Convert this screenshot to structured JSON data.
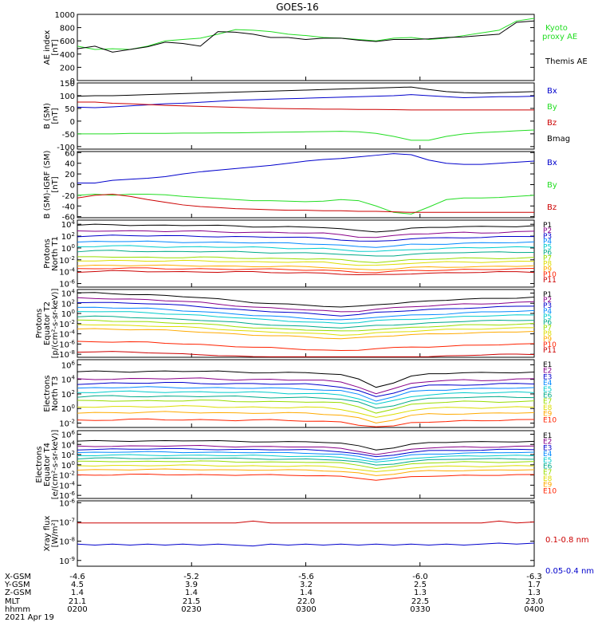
{
  "title": "GOES-16",
  "date_label": "2021 Apr 19",
  "footer": {
    "rows": [
      {
        "label": "X-GSM",
        "values": [
          "-4.6",
          "-5.2",
          "-5.6",
          "-6.0",
          "-6.3"
        ]
      },
      {
        "label": "Y-GSM",
        "values": [
          "4.5",
          "3.9",
          "3.2",
          "2.5",
          "1.7"
        ]
      },
      {
        "label": "Z-GSM",
        "values": [
          "1.4",
          "1.4",
          "1.4",
          "1.3",
          "1.3"
        ]
      },
      {
        "label": "MLT",
        "values": [
          "21.1",
          "21.5",
          "22.0",
          "22.5",
          "23.0"
        ]
      },
      {
        "label": "hhmm",
        "values": [
          "0200",
          "0230",
          "0300",
          "0330",
          "0400"
        ]
      }
    ]
  },
  "colors": {
    "black": "#000000",
    "green": "#22dd22",
    "blue": "#0000cc",
    "red": "#cc0000",
    "p_colors": [
      "#000000",
      "#880088",
      "#0000cc",
      "#0088ff",
      "#00cccc",
      "#00aa88",
      "#99dd00",
      "#dddd00",
      "#ffaa00",
      "#ff2200",
      "#cc0000"
    ]
  },
  "chart_data": [
    {
      "id": "ae",
      "type": "line",
      "ylabel": [
        "AE index",
        "[nT]"
      ],
      "ylim": [
        0,
        1000
      ],
      "ticks": [
        0,
        200,
        400,
        600,
        800,
        1000
      ],
      "tick_labels": [
        "0",
        "200",
        "400",
        "600",
        "800",
        "1000"
      ],
      "legend": [
        "Kyoto proxy AE",
        "Themis AE"
      ],
      "series": [
        {
          "name": "Kyoto proxy AE",
          "values": [
            520,
            470,
            480,
            470,
            520,
            600,
            620,
            640,
            700,
            770,
            760,
            740,
            700,
            680,
            650,
            640,
            620,
            600,
            640,
            650,
            620,
            640,
            680,
            720,
            760,
            900,
            940
          ]
        },
        {
          "name": "Themis AE",
          "values": [
            480,
            520,
            430,
            470,
            510,
            580,
            560,
            520,
            740,
            730,
            700,
            650,
            650,
            620,
            640,
            640,
            610,
            590,
            620,
            620,
            630,
            650,
            660,
            680,
            700,
            880,
            900
          ]
        }
      ]
    },
    {
      "id": "bsm",
      "type": "line",
      "ylabel": [
        "B (SM)",
        "[nT]"
      ],
      "ylim": [
        -110,
        150
      ],
      "ticks": [
        -100,
        -50,
        0,
        50,
        100,
        150
      ],
      "tick_labels": [
        "-100",
        "-50",
        "0",
        "50",
        "100",
        "150"
      ],
      "legend": [
        "Bx",
        "By",
        "Bz",
        "Bmag"
      ],
      "series": [
        {
          "name": "Bx",
          "values": [
            55,
            53,
            56,
            60,
            64,
            68,
            70,
            74,
            78,
            82,
            84,
            86,
            88,
            90,
            92,
            94,
            96,
            98,
            100,
            104,
            100,
            96,
            92,
            94,
            96,
            96,
            98
          ]
        },
        {
          "name": "By",
          "values": [
            -50,
            -50,
            -50,
            -48,
            -48,
            -48,
            -47,
            -47,
            -46,
            -46,
            -45,
            -44,
            -43,
            -42,
            -41,
            -40,
            -42,
            -48,
            -60,
            -75,
            -75,
            -60,
            -50,
            -45,
            -42,
            -38,
            -35
          ]
        },
        {
          "name": "Bz",
          "values": [
            75,
            75,
            70,
            68,
            65,
            62,
            60,
            58,
            56,
            54,
            52,
            50,
            49,
            48,
            47,
            47,
            46,
            46,
            45,
            44,
            44,
            44,
            44,
            44,
            44,
            44,
            44
          ]
        },
        {
          "name": "Bmag",
          "values": [
            98,
            100,
            100,
            102,
            104,
            106,
            108,
            110,
            112,
            114,
            116,
            118,
            120,
            122,
            124,
            126,
            128,
            130,
            132,
            134,
            124,
            116,
            112,
            110,
            112,
            114,
            116
          ]
        }
      ]
    },
    {
      "id": "bigrf",
      "type": "line",
      "ylabel": [
        "B (SM)-IGRF (SM)",
        "[nT]"
      ],
      "ylim": [
        -62,
        62
      ],
      "ticks": [
        -60,
        -40,
        -20,
        0,
        20,
        40,
        60
      ],
      "tick_labels": [
        "-60",
        "-40",
        "-20",
        "0",
        "20",
        "40",
        "60"
      ],
      "legend": [
        "Bx",
        "By",
        "Bz"
      ],
      "series": [
        {
          "name": "Bx",
          "values": [
            3,
            3,
            8,
            10,
            12,
            15,
            20,
            24,
            27,
            30,
            33,
            36,
            40,
            44,
            47,
            49,
            52,
            55,
            58,
            56,
            46,
            40,
            38,
            38,
            40,
            42,
            44
          ]
        },
        {
          "name": "By",
          "values": [
            -20,
            -18,
            -20,
            -18,
            -18,
            -19,
            -22,
            -24,
            -26,
            -28,
            -30,
            -30,
            -31,
            -32,
            -31,
            -28,
            -30,
            -40,
            -52,
            -55,
            -42,
            -28,
            -25,
            -25,
            -24,
            -22,
            -20
          ]
        },
        {
          "name": "Bz",
          "values": [
            -25,
            -20,
            -18,
            -22,
            -28,
            -33,
            -38,
            -41,
            -43,
            -45,
            -46,
            -47,
            -48,
            -48,
            -49,
            -49,
            -50,
            -50,
            -51,
            -52,
            -52,
            -52,
            -52,
            -52,
            -52,
            -52,
            -52
          ]
        }
      ]
    },
    {
      "id": "pnt1",
      "type": "line",
      "log": true,
      "ylabel": [
        "Protons",
        "North T1"
      ],
      "ylim_log": [
        -6.6,
        4.7
      ],
      "ticks": [
        4,
        2,
        0,
        -2,
        -4,
        -6
      ],
      "tick_labels": [
        "10^4",
        "10^2",
        "10^0",
        "10^-2",
        "10^-4",
        "10^-6"
      ],
      "legend": [
        "P1",
        "P2",
        "P3",
        "P4",
        "P5",
        "P6",
        "P7",
        "P8",
        "P9",
        "P10",
        "P11"
      ],
      "base_logs": [
        3.8,
        2.8,
        2.0,
        1.0,
        0.2,
        -0.6,
        -1.6,
        -2.2,
        -3.0,
        -3.5,
        -4.0
      ],
      "profile": [
        0,
        0.1,
        0.15,
        0.1,
        0.05,
        0,
        0,
        0,
        -0.05,
        -0.1,
        -0.15,
        -0.2,
        -0.25,
        -0.3,
        -0.35,
        -0.6,
        -0.9,
        -1.0,
        -0.8,
        -0.5,
        -0.4,
        -0.3,
        -0.2,
        -0.2,
        -0.15,
        -0.1,
        -0.05
      ]
    },
    {
      "id": "pet2",
      "type": "line",
      "log": true,
      "ylabel": [
        "Protons",
        "Equator T2",
        "[p/(cm²-s-sr-keV)]"
      ],
      "ylim_log": [
        -8.6,
        4.7
      ],
      "ticks": [
        4,
        2,
        0,
        -2,
        -4,
        -6,
        -8
      ],
      "tick_labels": [
        "10^4",
        "10^2",
        "10^0",
        "10^-2",
        "10^-4",
        "10^-6",
        "10^-8"
      ],
      "legend": [
        "P1",
        "P2",
        "P3",
        "P4",
        "P5",
        "P6",
        "P7",
        "P8",
        "P9",
        "P10",
        "P11"
      ],
      "base_logs": [
        4.0,
        3.0,
        2.2,
        1.2,
        0.4,
        -0.6,
        -1.4,
        -2.2,
        -3.0,
        -5.5,
        -7.5
      ],
      "profile": [
        0,
        0,
        -0.1,
        -0.2,
        -0.3,
        -0.5,
        -0.7,
        -0.9,
        -1.2,
        -1.5,
        -1.8,
        -2.0,
        -2.2,
        -2.4,
        -2.6,
        -2.8,
        -2.6,
        -2.2,
        -2.0,
        -1.8,
        -1.6,
        -1.4,
        -1.2,
        -1.1,
        -1.0,
        -0.9,
        -0.8
      ]
    },
    {
      "id": "ent3",
      "type": "line",
      "log": true,
      "ylabel": [
        "Electrons",
        "North T3"
      ],
      "ylim_log": [
        -2.6,
        6.7
      ],
      "ticks": [
        6,
        4,
        2,
        0,
        -2
      ],
      "tick_labels": [
        "10^6",
        "10^4",
        "10^2",
        "10^0",
        "10^-2"
      ],
      "legend": [
        "E1",
        "E2",
        "E3",
        "E4",
        "E5",
        "E6",
        "E7",
        "E8",
        "E9",
        "E10"
      ],
      "base_logs": [
        5.0,
        4.0,
        3.4,
        2.8,
        2.2,
        1.6,
        1.0,
        0.2,
        -0.6,
        -1.6
      ],
      "profile": [
        0,
        0.05,
        0.1,
        0.1,
        0.1,
        0.1,
        0.1,
        0.1,
        0.05,
        0,
        0,
        -0.05,
        -0.1,
        -0.1,
        -0.2,
        -0.4,
        -1.0,
        -2.0,
        -1.4,
        -0.6,
        -0.3,
        -0.2,
        -0.1,
        -0.1,
        -0.05,
        0,
        0
      ]
    },
    {
      "id": "eet4",
      "type": "line",
      "log": true,
      "ylabel": [
        "Electrons",
        "Equator T4",
        "[e/(cm²-s-sr-keV)]"
      ],
      "ylim_log": [
        -6.6,
        6.7
      ],
      "ticks": [
        6,
        4,
        2,
        0,
        -2,
        -4,
        -6
      ],
      "tick_labels": [
        "10^6",
        "10^4",
        "10^2",
        "10^0",
        "10^-2",
        "10^-4",
        "10^-6"
      ],
      "legend": [
        "E1",
        "E2",
        "E3",
        "E4",
        "E5",
        "E6",
        "E7",
        "E8",
        "E9",
        "E10"
      ],
      "base_logs": [
        4.6,
        3.6,
        3.0,
        2.4,
        1.8,
        1.2,
        0.6,
        -0.2,
        -1.0,
        -2.0
      ],
      "profile": [
        0,
        0.05,
        0.1,
        0.1,
        0.1,
        0.1,
        0.1,
        0.1,
        0.05,
        0,
        0,
        -0.05,
        -0.1,
        -0.1,
        -0.2,
        -0.4,
        -0.9,
        -1.6,
        -1.2,
        -0.6,
        -0.3,
        -0.2,
        -0.1,
        -0.1,
        -0.05,
        0,
        0
      ]
    },
    {
      "id": "xray",
      "type": "line",
      "log": true,
      "ylabel": [
        "Xray flux",
        "[W/m²]"
      ],
      "ylim_log": [
        -9.3,
        -5.9
      ],
      "ticks": [
        -6,
        -7,
        -8,
        -9
      ],
      "tick_labels": [
        "10^-6",
        "10^-7",
        "10^-8",
        "10^-9"
      ],
      "legend": [
        "0.1-0.8 nm",
        "0.05-0.4 nm"
      ],
      "series": [
        {
          "name": "0.1-0.8 nm",
          "values": [
            -7.05,
            -7.05,
            -7.05,
            -7.05,
            -7.05,
            -7.05,
            -7.05,
            -7.05,
            -7.05,
            -7.05,
            -6.95,
            -7.05,
            -7.05,
            -7.05,
            -7.05,
            -7.05,
            -7.05,
            -7.05,
            -7.05,
            -7.05,
            -7.05,
            -7.05,
            -7.05,
            -7.05,
            -6.95,
            -7.05,
            -7.0
          ]
        },
        {
          "name": "0.05-0.4 nm",
          "values": [
            -8.15,
            -8.2,
            -8.15,
            -8.2,
            -8.15,
            -8.2,
            -8.15,
            -8.2,
            -8.15,
            -8.2,
            -8.25,
            -8.15,
            -8.2,
            -8.15,
            -8.2,
            -8.15,
            -8.2,
            -8.15,
            -8.2,
            -8.15,
            -8.2,
            -8.15,
            -8.2,
            -8.15,
            -8.1,
            -8.15,
            -8.1
          ]
        }
      ]
    }
  ]
}
